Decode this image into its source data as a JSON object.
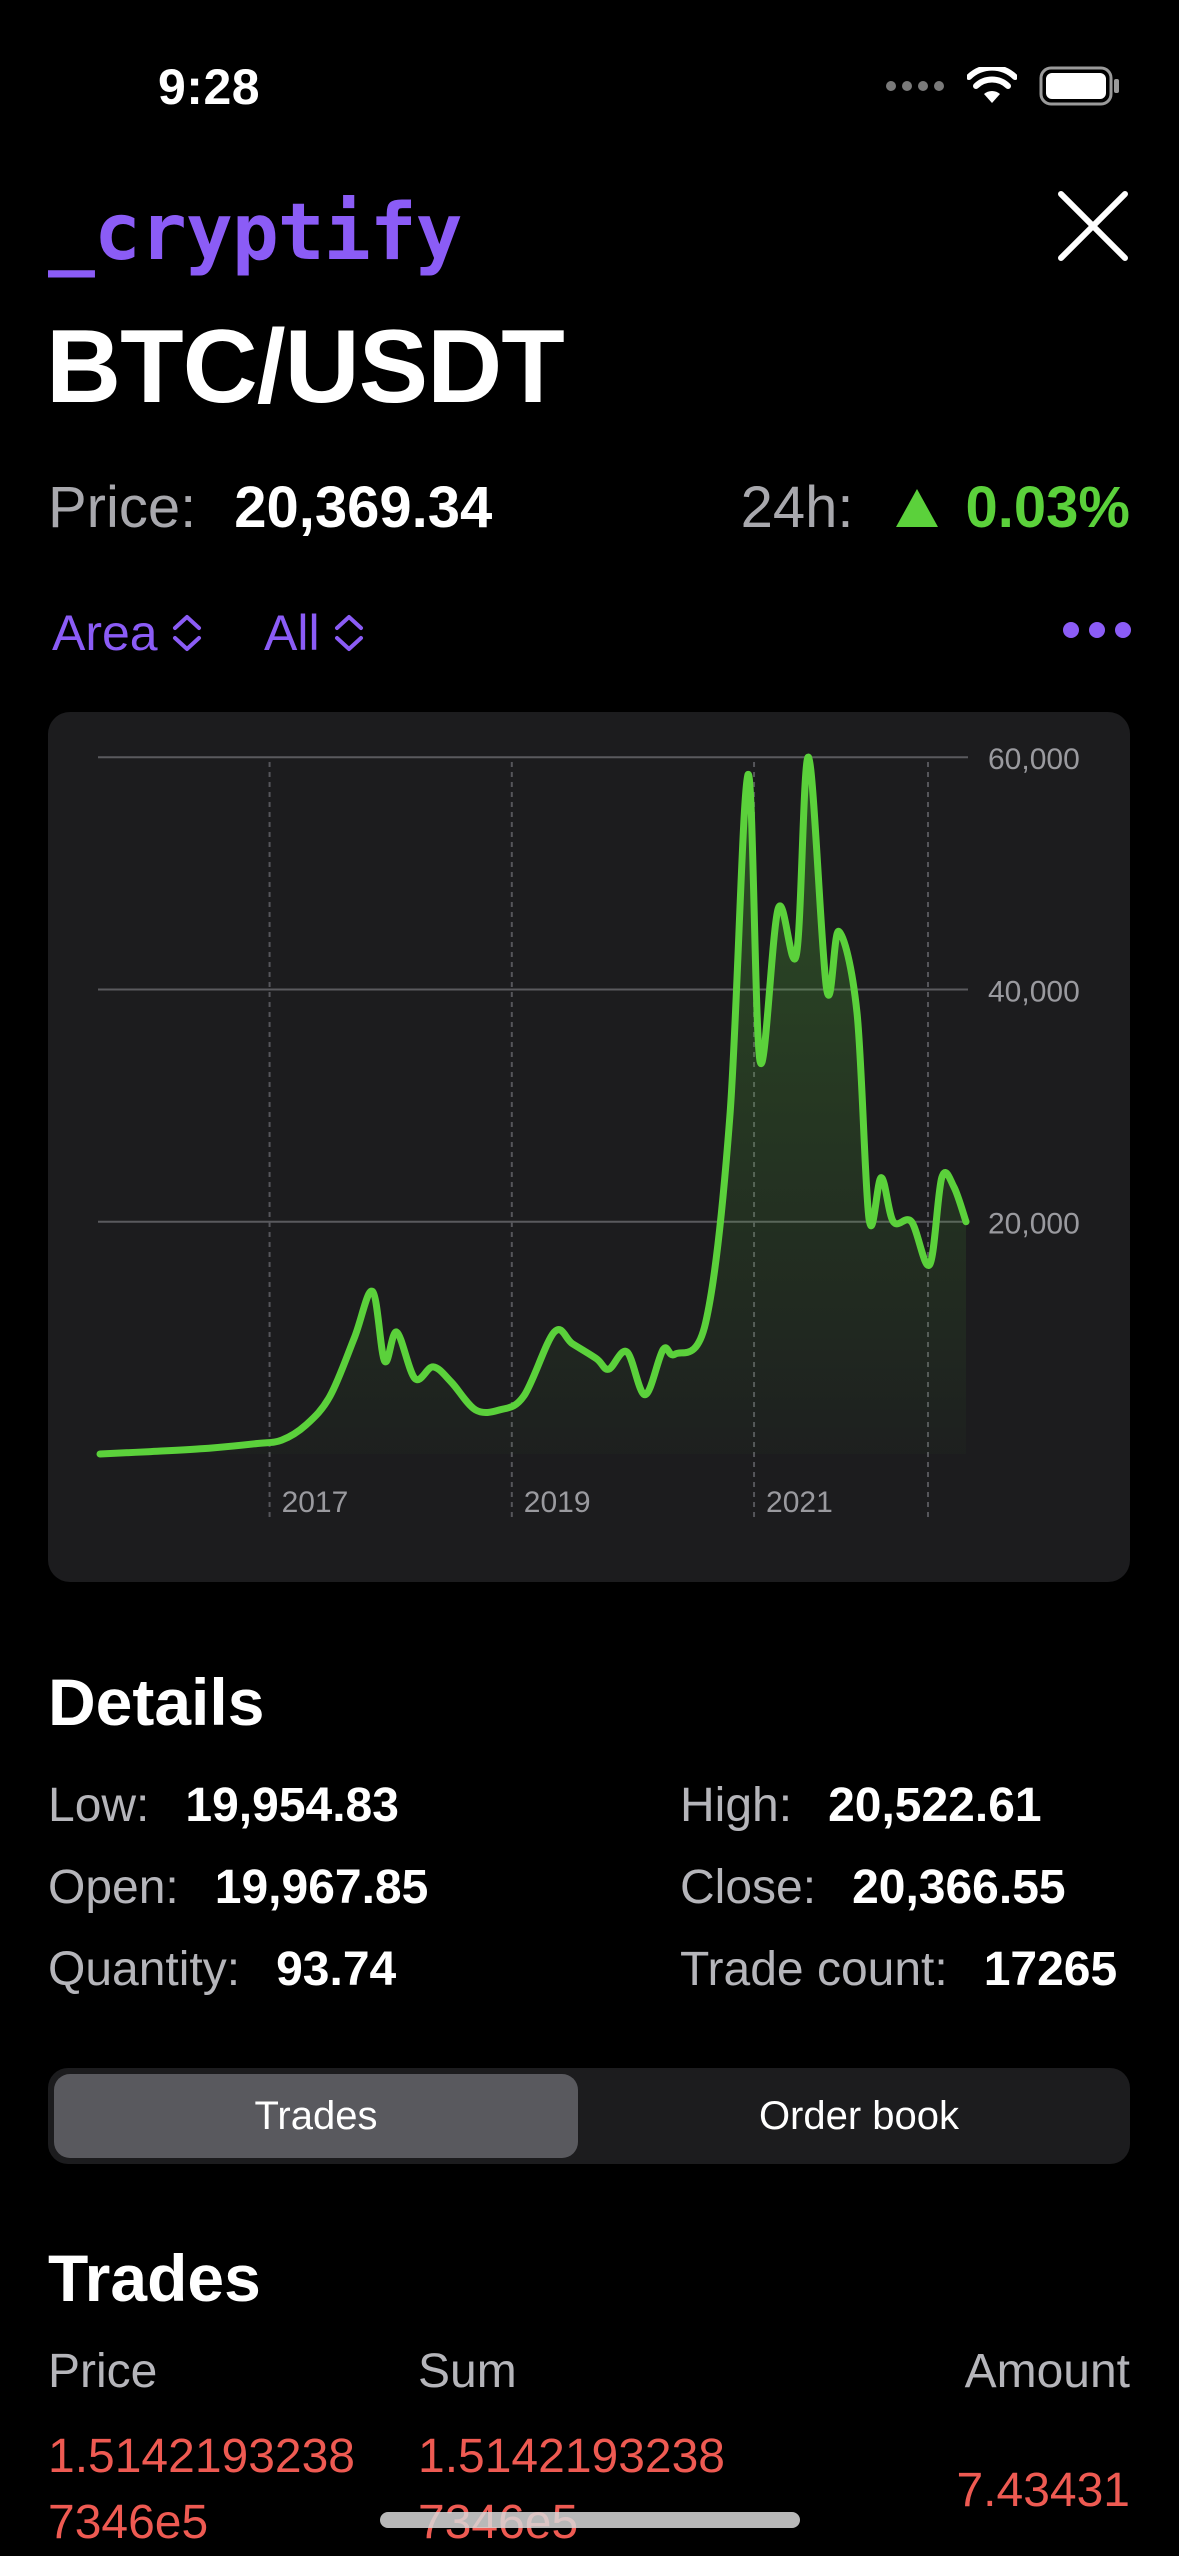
{
  "status_bar": {
    "time": "9:28"
  },
  "header": {
    "brand": "_cryptify",
    "pair": "BTC/USDT"
  },
  "price": {
    "label": "Price:",
    "value": "20,369.34",
    "change_label": "24h:",
    "change_value": "0.03%",
    "change_color": "#5bd13b"
  },
  "chart_controls": {
    "type_label": "Area",
    "range_label": "All"
  },
  "chart_data": {
    "type": "area",
    "color": "#5bd13b",
    "y_ticks": [
      "60,000",
      "40,000",
      "20,000"
    ],
    "x_ticks": [
      "2017",
      "2019",
      "2021"
    ],
    "ylim": [
      0,
      62000
    ],
    "x": [
      2015.6,
      2016.0,
      2016.5,
      2016.9,
      2017.1,
      2017.3,
      2017.5,
      2017.7,
      2017.85,
      2017.95,
      2018.05,
      2018.2,
      2018.35,
      2018.5,
      2018.7,
      2018.9,
      2019.1,
      2019.35,
      2019.5,
      2019.7,
      2019.8,
      2019.95,
      2020.1,
      2020.25,
      2020.35,
      2020.6,
      2020.8,
      2020.95,
      2021.05,
      2021.2,
      2021.35,
      2021.45,
      2021.6,
      2021.7,
      2021.85,
      2021.95,
      2022.05,
      2022.15,
      2022.3,
      2022.45,
      2022.55,
      2022.65,
      2022.75
    ],
    "y": [
      0,
      200,
      500,
      900,
      1200,
      2500,
      5000,
      10000,
      14000,
      8000,
      10500,
      6500,
      7500,
      6200,
      3800,
      3800,
      5000,
      10500,
      9500,
      8200,
      7300,
      8800,
      5100,
      9000,
      8600,
      11300,
      29000,
      58500,
      33800,
      47000,
      43000,
      60000,
      40000,
      45000,
      38000,
      20200,
      23800,
      20000,
      20000,
      16300,
      23800,
      23000,
      20000
    ]
  },
  "details": {
    "title": "Details",
    "items": [
      {
        "label": "Low:",
        "value": "19,954.83"
      },
      {
        "label": "High:",
        "value": "20,522.61"
      },
      {
        "label": "Open:",
        "value": "19,967.85"
      },
      {
        "label": "Close:",
        "value": "20,366.55"
      },
      {
        "label": "Quantity:",
        "value": "93.74"
      },
      {
        "label": "Trade count:",
        "value": "17265"
      }
    ]
  },
  "segments": {
    "trades": "Trades",
    "order_book": "Order book"
  },
  "trades": {
    "title": "Trades",
    "headers": {
      "price": "Price",
      "sum": "Sum",
      "amount": "Amount"
    },
    "rows": [
      {
        "price_l1": "1.5142193238",
        "price_l2": "7346e5",
        "sum_l1": "1.5142193238",
        "sum_l2": "7346e5",
        "amount": "7.43431"
      }
    ],
    "sell_color": "#ee5a52"
  }
}
